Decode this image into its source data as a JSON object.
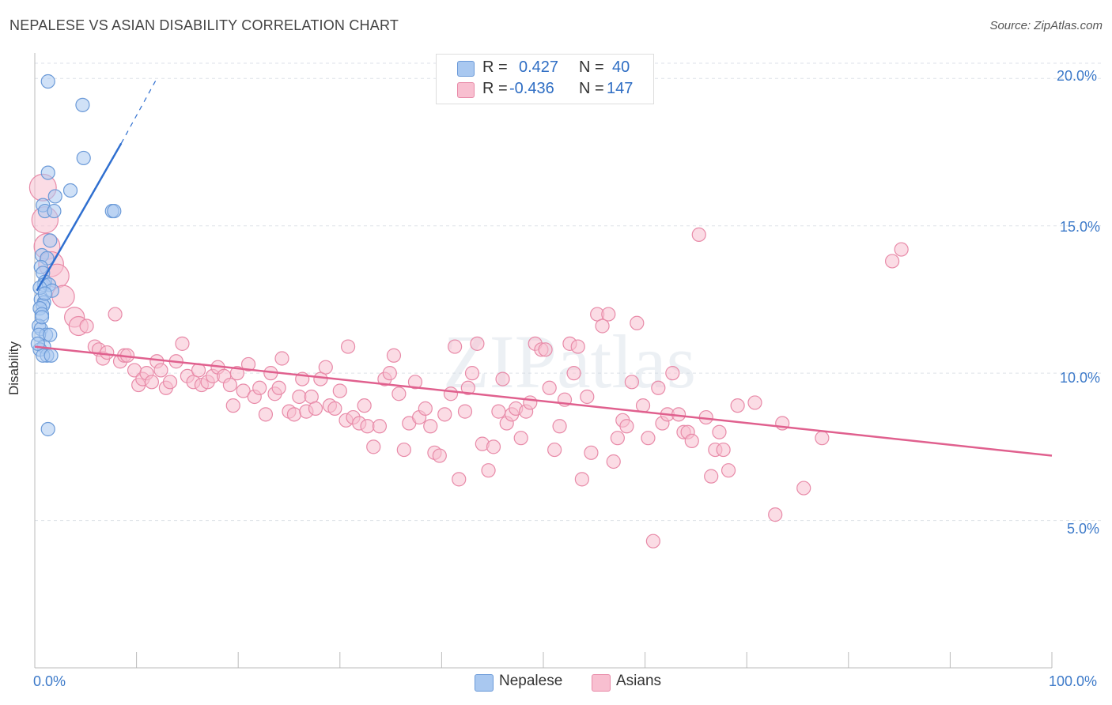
{
  "title": "NEPALESE VS ASIAN DISABILITY CORRELATION CHART",
  "source": "Source: ZipAtlas.com",
  "watermark": "ZIPatlas",
  "legend_stats": [
    {
      "r_label": "R =",
      "r_value": "0.427",
      "n_label": "N =",
      "n_value": "40",
      "color": "#a9c8f0",
      "border": "#6b9ad8"
    },
    {
      "r_label": "R =",
      "r_value": "-0.436",
      "n_label": "N =",
      "n_value": "147",
      "color": "#f8bfd0",
      "border": "#e88aa8"
    }
  ],
  "bottom_legend": [
    {
      "label": "Nepalese",
      "color": "#a9c8f0",
      "border": "#6b9ad8"
    },
    {
      "label": "Asians",
      "color": "#f8bfd0",
      "border": "#e88aa8"
    }
  ],
  "chart_data": {
    "type": "scatter",
    "title": "NEPALESE VS ASIAN DISABILITY CORRELATION CHART",
    "xlabel": "",
    "ylabel": "Disability",
    "xlim": [
      0,
      100
    ],
    "ylim": [
      0,
      21
    ],
    "x_tick_labels": [
      "0.0%",
      "100.0%"
    ],
    "y_ticks": [
      5,
      10,
      15,
      20
    ],
    "y_tick_labels": [
      "5.0%",
      "10.0%",
      "15.0%",
      "20.0%"
    ],
    "grid": true,
    "series": [
      {
        "name": "Nepalese",
        "color": "#6b9ad8",
        "fill": "#a9c8f0",
        "trend_color": "#2f6fd0",
        "trend": {
          "x0": 0.2,
          "y0": 12.8,
          "x1": 8.5,
          "y1": 17.8,
          "dash_to_x": 12,
          "dash_to_y": 20.0
        },
        "points": [
          [
            1.3,
            19.9
          ],
          [
            4.7,
            19.1
          ],
          [
            4.8,
            17.3
          ],
          [
            1.3,
            16.8
          ],
          [
            3.5,
            16.2
          ],
          [
            2.0,
            16.0
          ],
          [
            0.8,
            15.7
          ],
          [
            1.0,
            15.5
          ],
          [
            1.9,
            15.5
          ],
          [
            7.6,
            15.5
          ],
          [
            7.8,
            15.5
          ],
          [
            1.5,
            14.5
          ],
          [
            0.7,
            14.0
          ],
          [
            1.2,
            13.9
          ],
          [
            0.6,
            13.6
          ],
          [
            0.8,
            13.4
          ],
          [
            1.0,
            13.1
          ],
          [
            0.9,
            13.0
          ],
          [
            1.4,
            13.0
          ],
          [
            1.7,
            12.8
          ],
          [
            0.6,
            12.5
          ],
          [
            0.9,
            12.4
          ],
          [
            0.8,
            12.3
          ],
          [
            0.5,
            12.2
          ],
          [
            0.7,
            12.0
          ],
          [
            0.4,
            11.6
          ],
          [
            0.6,
            11.5
          ],
          [
            1.1,
            11.3
          ],
          [
            0.4,
            11.3
          ],
          [
            1.5,
            11.3
          ],
          [
            0.9,
            10.9
          ],
          [
            0.5,
            10.8
          ],
          [
            1.2,
            10.6
          ],
          [
            0.8,
            10.6
          ],
          [
            1.6,
            10.6
          ],
          [
            0.3,
            11.0
          ],
          [
            1.3,
            8.1
          ],
          [
            0.5,
            12.9
          ],
          [
            1.0,
            12.7
          ],
          [
            0.7,
            11.9
          ]
        ]
      },
      {
        "name": "Asians",
        "color": "#e88aa8",
        "fill": "#f8bfd0",
        "trend_color": "#e0608e",
        "trend": {
          "x0": 0,
          "y0": 10.9,
          "x1": 100,
          "y1": 7.2
        },
        "points": [
          [
            0.8,
            16.3
          ],
          [
            1.0,
            15.2
          ],
          [
            1.2,
            14.3
          ],
          [
            1.6,
            13.7
          ],
          [
            2.2,
            13.3
          ],
          [
            2.8,
            12.6
          ],
          [
            3.9,
            11.9
          ],
          [
            4.3,
            11.6
          ],
          [
            5.1,
            11.6
          ],
          [
            5.9,
            10.9
          ],
          [
            6.3,
            10.8
          ],
          [
            6.7,
            10.5
          ],
          [
            7.1,
            10.7
          ],
          [
            7.9,
            12.0
          ],
          [
            8.4,
            10.4
          ],
          [
            8.8,
            10.6
          ],
          [
            9.1,
            10.6
          ],
          [
            9.8,
            10.1
          ],
          [
            10.2,
            9.6
          ],
          [
            10.6,
            9.8
          ],
          [
            11.0,
            10.0
          ],
          [
            11.5,
            9.7
          ],
          [
            12.0,
            10.4
          ],
          [
            12.4,
            10.1
          ],
          [
            12.9,
            9.5
          ],
          [
            13.3,
            9.7
          ],
          [
            13.9,
            10.4
          ],
          [
            14.5,
            11.0
          ],
          [
            15.0,
            9.9
          ],
          [
            15.6,
            9.7
          ],
          [
            16.1,
            10.1
          ],
          [
            16.4,
            9.6
          ],
          [
            17.0,
            9.7
          ],
          [
            17.5,
            9.9
          ],
          [
            18.0,
            10.2
          ],
          [
            18.6,
            9.9
          ],
          [
            19.2,
            9.6
          ],
          [
            19.5,
            8.9
          ],
          [
            19.9,
            10.0
          ],
          [
            20.5,
            9.4
          ],
          [
            21.0,
            10.3
          ],
          [
            21.6,
            9.2
          ],
          [
            22.1,
            9.5
          ],
          [
            22.7,
            8.6
          ],
          [
            23.2,
            10.0
          ],
          [
            23.6,
            9.3
          ],
          [
            24.0,
            9.5
          ],
          [
            24.3,
            10.5
          ],
          [
            25.0,
            8.7
          ],
          [
            25.5,
            8.6
          ],
          [
            26.0,
            9.2
          ],
          [
            26.3,
            9.8
          ],
          [
            26.7,
            8.7
          ],
          [
            27.2,
            9.2
          ],
          [
            27.6,
            8.8
          ],
          [
            28.1,
            9.8
          ],
          [
            28.6,
            10.2
          ],
          [
            29.0,
            8.9
          ],
          [
            29.5,
            8.8
          ],
          [
            30.0,
            9.4
          ],
          [
            30.6,
            8.4
          ],
          [
            30.8,
            10.9
          ],
          [
            31.3,
            8.5
          ],
          [
            31.9,
            8.3
          ],
          [
            32.4,
            8.9
          ],
          [
            32.7,
            8.2
          ],
          [
            33.3,
            7.5
          ],
          [
            33.9,
            8.2
          ],
          [
            34.4,
            9.8
          ],
          [
            34.9,
            10.0
          ],
          [
            35.3,
            10.6
          ],
          [
            35.8,
            9.3
          ],
          [
            36.3,
            7.4
          ],
          [
            36.8,
            8.3
          ],
          [
            37.4,
            9.7
          ],
          [
            37.8,
            8.5
          ],
          [
            38.4,
            8.8
          ],
          [
            38.9,
            8.2
          ],
          [
            39.3,
            7.3
          ],
          [
            39.8,
            7.2
          ],
          [
            40.3,
            8.6
          ],
          [
            40.9,
            9.3
          ],
          [
            41.3,
            10.9
          ],
          [
            41.7,
            6.4
          ],
          [
            42.3,
            8.7
          ],
          [
            42.6,
            9.5
          ],
          [
            43.0,
            10.0
          ],
          [
            43.5,
            11.0
          ],
          [
            44.0,
            7.6
          ],
          [
            44.6,
            6.7
          ],
          [
            45.1,
            7.5
          ],
          [
            45.6,
            8.7
          ],
          [
            46.0,
            9.8
          ],
          [
            46.4,
            8.3
          ],
          [
            46.9,
            8.6
          ],
          [
            47.3,
            8.8
          ],
          [
            47.8,
            7.8
          ],
          [
            48.3,
            8.7
          ],
          [
            48.7,
            9.0
          ],
          [
            49.2,
            11.0
          ],
          [
            49.8,
            10.8
          ],
          [
            50.2,
            10.8
          ],
          [
            50.6,
            9.5
          ],
          [
            51.1,
            7.4
          ],
          [
            51.6,
            8.2
          ],
          [
            52.1,
            9.1
          ],
          [
            52.6,
            11.0
          ],
          [
            53.0,
            10.0
          ],
          [
            53.4,
            10.9
          ],
          [
            53.8,
            6.4
          ],
          [
            54.3,
            9.2
          ],
          [
            54.7,
            7.3
          ],
          [
            55.3,
            12.0
          ],
          [
            55.8,
            11.6
          ],
          [
            56.4,
            12.0
          ],
          [
            56.9,
            7.0
          ],
          [
            57.3,
            7.8
          ],
          [
            57.8,
            8.4
          ],
          [
            58.2,
            8.2
          ],
          [
            58.7,
            9.7
          ],
          [
            59.2,
            11.7
          ],
          [
            59.8,
            8.9
          ],
          [
            60.3,
            7.8
          ],
          [
            60.8,
            4.3
          ],
          [
            61.3,
            9.5
          ],
          [
            61.7,
            8.3
          ],
          [
            62.2,
            8.6
          ],
          [
            62.7,
            10.0
          ],
          [
            63.3,
            8.6
          ],
          [
            63.8,
            8.0
          ],
          [
            64.2,
            8.0
          ],
          [
            64.6,
            7.7
          ],
          [
            65.3,
            14.7
          ],
          [
            66.0,
            8.5
          ],
          [
            66.5,
            6.5
          ],
          [
            66.9,
            7.4
          ],
          [
            67.3,
            8.0
          ],
          [
            67.7,
            7.4
          ],
          [
            68.2,
            6.7
          ],
          [
            69.1,
            8.9
          ],
          [
            70.8,
            9.0
          ],
          [
            72.8,
            5.2
          ],
          [
            73.5,
            8.3
          ],
          [
            75.6,
            6.1
          ],
          [
            77.4,
            7.8
          ],
          [
            84.3,
            13.8
          ],
          [
            85.2,
            14.2
          ]
        ]
      }
    ]
  }
}
